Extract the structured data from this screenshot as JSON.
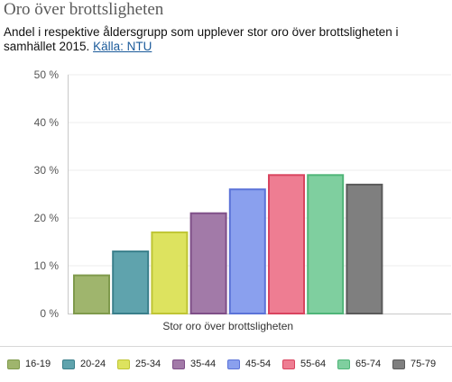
{
  "header": {
    "title": "Oro över brottsligheten",
    "subtitle_text": "Andel i respektive åldersgrupp som upplever stor oro över brottsligheten i samhället 2015.",
    "source_link": "Källa: NTU"
  },
  "chart_data": {
    "type": "bar",
    "categories": [
      "Stor oro över brottsligheten"
    ],
    "series": [
      {
        "name": "16-19",
        "values": [
          8
        ],
        "color": "#9fb56d",
        "border": "#7f9a4c"
      },
      {
        "name": "20-24",
        "values": [
          13
        ],
        "color": "#5fa3ad",
        "border": "#3a7f8b"
      },
      {
        "name": "25-34",
        "values": [
          17
        ],
        "color": "#dde35f",
        "border": "#bfc534"
      },
      {
        "name": "35-44",
        "values": [
          21
        ],
        "color": "#a27aa8",
        "border": "#7f4f88"
      },
      {
        "name": "45-54",
        "values": [
          26
        ],
        "color": "#8aa0ee",
        "border": "#5b73d8"
      },
      {
        "name": "55-64",
        "values": [
          29
        ],
        "color": "#ee7d92",
        "border": "#d9445f"
      },
      {
        "name": "65-74",
        "values": [
          29
        ],
        "color": "#7fcf9f",
        "border": "#4fb578"
      },
      {
        "name": "75-79",
        "values": [
          27
        ],
        "color": "#7f7f7f",
        "border": "#5a5a5a"
      }
    ],
    "y_ticks": [
      "0 %",
      "10 %",
      "20 %",
      "30 %",
      "40 %",
      "50 %"
    ],
    "ylim": [
      0,
      50
    ],
    "grid": true,
    "legend": "bottom"
  }
}
